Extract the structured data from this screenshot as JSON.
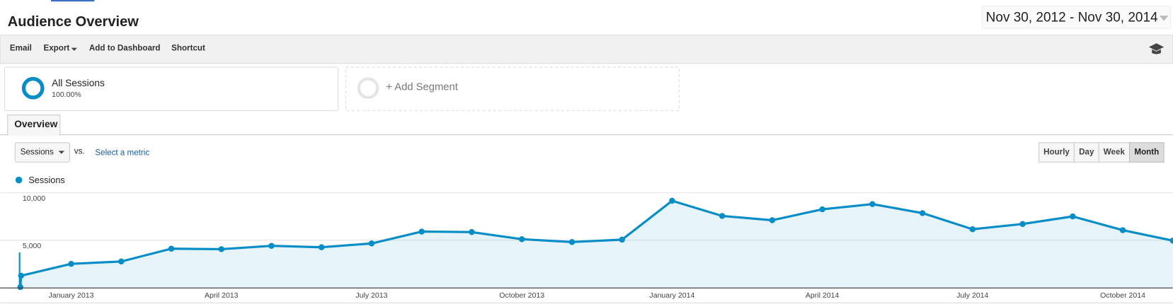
{
  "header": {
    "title": "Audience Overview",
    "date_range": "Nov 30, 2012 - Nov 30, 2014"
  },
  "toolbar": [
    "Email",
    "Export",
    "Add to Dashboard",
    "Shortcut"
  ],
  "segments": {
    "active": {
      "name": "All Sessions",
      "share": "100.00%"
    },
    "add": "+ Add Segment"
  },
  "tab": "Overview",
  "metric_select": {
    "metric": "Sessions",
    "vs": "vs.",
    "link": "Select a metric"
  },
  "granularity": [
    "Hourly",
    "Day",
    "Week",
    "Month"
  ],
  "chart_data": {
    "type": "line",
    "categories": [
      null,
      null,
      "January 2013",
      null,
      null,
      "April 2013",
      null,
      null,
      "July 2013",
      null,
      null,
      "October 2013",
      null,
      null,
      "January 2014",
      null,
      null,
      "April 2014",
      null,
      null,
      "July 2014",
      null,
      null,
      "October 2014",
      null
    ],
    "series": [
      {
        "name": "Sessions",
        "color": "#058dc7",
        "values": [
          50,
          1250,
          2500,
          2750,
          4100,
          4050,
          4400,
          4250,
          4650,
          5900,
          5850,
          5100,
          4800,
          5050,
          9150,
          7550,
          7100,
          8250,
          8800,
          7850,
          6150,
          6700,
          7500,
          6050,
          4950
        ]
      }
    ],
    "ylim": [
      0,
      10000
    ],
    "yticks": [
      {
        "value": 5000,
        "label": "5,000"
      },
      {
        "value": 10000,
        "label": "10,000"
      }
    ],
    "grid": true
  }
}
